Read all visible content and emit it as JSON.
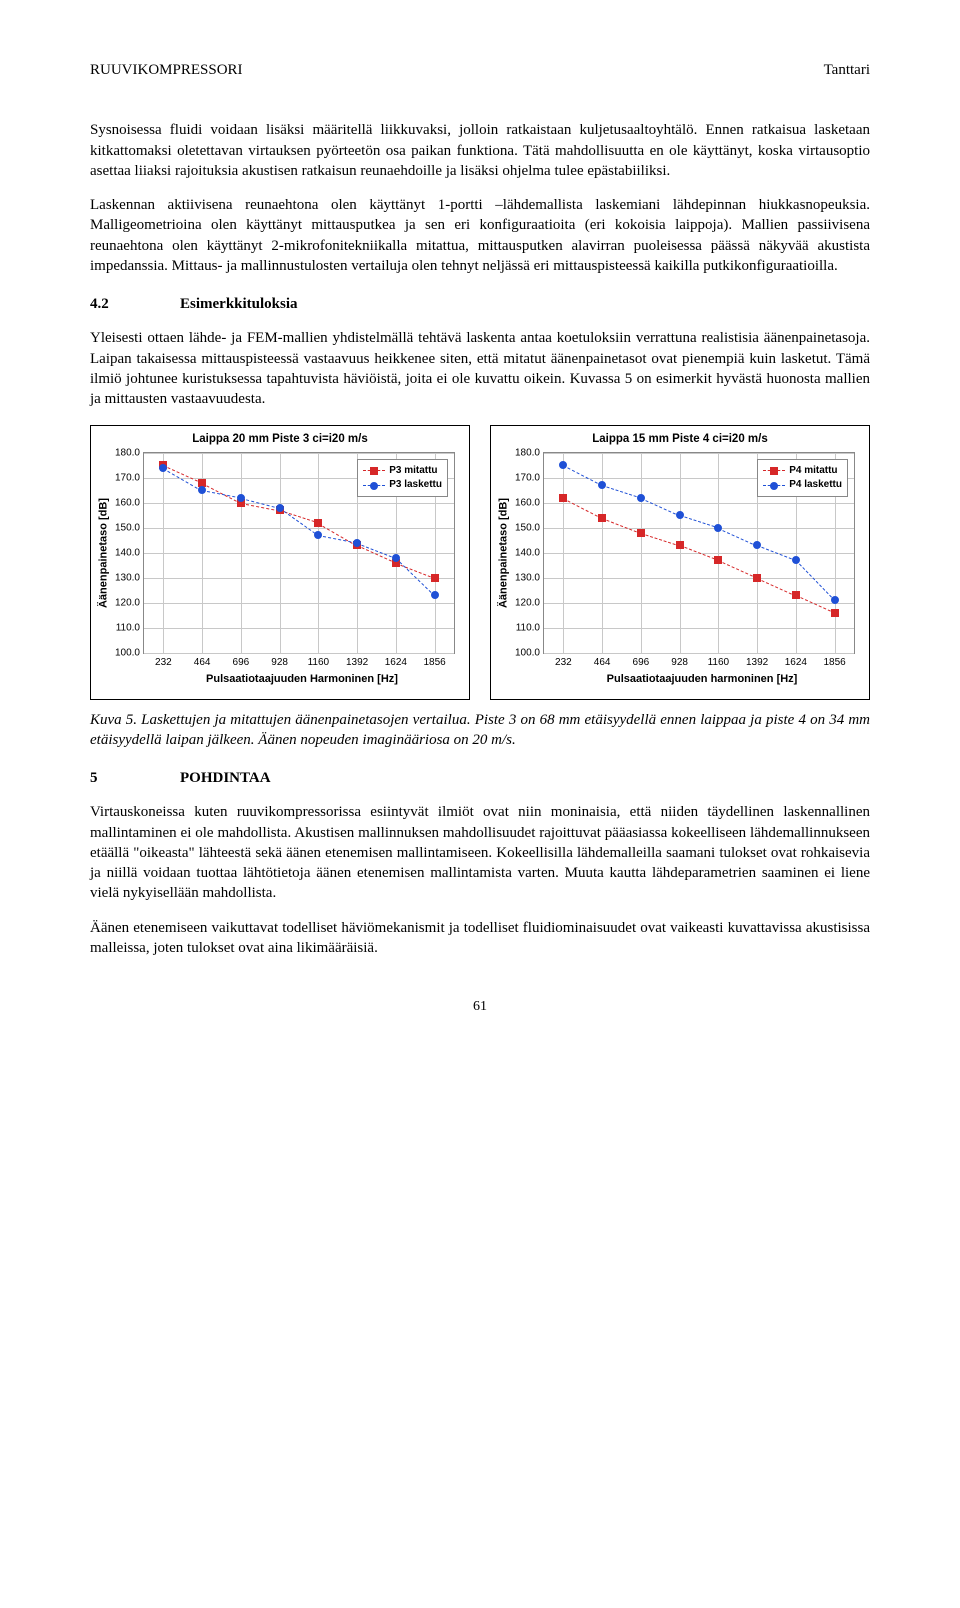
{
  "header": {
    "left": "RUUVIKOMPRESSORI",
    "right": "Tanttari"
  },
  "para1": "Sysnoisessa fluidi voidaan lisäksi määritellä liikkuvaksi, jolloin ratkaistaan kuljetusaaltoyhtälö. Ennen ratkaisua lasketaan kitkattomaksi oletettavan virtauksen pyörteetön osa paikan funktiona. Tätä mahdollisuutta en ole käyttänyt, koska virtausoptio asettaa liiaksi rajoituksia akustisen ratkaisun reunaehdoille ja lisäksi ohjelma tulee epästabiiliksi.",
  "para2": "Laskennan aktiivisena reunaehtona olen käyttänyt 1-portti –lähdemallista laskemiani lähdepinnan hiukkasnopeuksia. Malligeometrioina olen käyttänyt mittausputkea ja sen eri konfiguraatioita (eri kokoisia laippoja). Mallien passiivisena reunaehtona olen käyttänyt 2-mikrofonitekniikalla mitattua, mittausputken alavirran puoleisessa päässä näkyvää akustista impedanssia. Mittaus- ja mallinnustulosten vertailuja olen tehnyt neljässä eri mittauspisteessä kaikilla putkikonfiguraatioilla.",
  "section42": {
    "num": "4.2",
    "title": "Esimerkkituloksia"
  },
  "para3": "Yleisesti ottaen lähde- ja FEM-mallien yhdistelmällä tehtävä laskenta antaa koetuloksiin verrattuna realistisia äänenpainetasoja. Laipan takaisessa mittauspisteessä vastaavuus heikkenee siten, että mitatut äänenpainetasot ovat pienempiä kuin lasketut. Tämä ilmiö johtunee kuristuksessa tapahtuvista häviöistä, joita ei ole kuvattu oikein. Kuvassa 5 on esimerkit hyvästä huonosta mallien ja mittausten vastaavuudesta.",
  "chart_left": {
    "title": "Laippa 20 mm Piste 3 ci=i20 m/s",
    "ylabel": "Äänenpainetaso [dB]",
    "xlabel": "Pulsaatiotaajuuden Harmoninen [Hz]",
    "ylim": [
      100,
      180
    ],
    "ytick_step": 10,
    "xticks": [
      232,
      464,
      696,
      928,
      1160,
      1392,
      1624,
      1856
    ],
    "legend": [
      "P3 mitattu",
      "P3 laskettu"
    ],
    "colors": {
      "mitattu": "#d62728",
      "laskettu": "#1f50d6",
      "grid": "#c8c8c8",
      "bg": "#ffffff"
    },
    "series_mitattu": [
      175,
      168,
      160,
      157,
      152,
      143,
      136,
      130
    ],
    "series_laskettu": [
      174,
      165,
      162,
      158,
      147,
      144,
      138,
      123
    ]
  },
  "chart_right": {
    "title": "Laippa 15 mm Piste 4 ci=i20 m/s",
    "ylabel": "Äänenpainetaso [dB]",
    "xlabel": "Pulsaatiotaajuuden harmoninen [Hz]",
    "ylim": [
      100,
      180
    ],
    "ytick_step": 10,
    "xticks": [
      232,
      464,
      696,
      928,
      1160,
      1392,
      1624,
      1856
    ],
    "legend": [
      "P4 mitattu",
      "P4 laskettu"
    ],
    "colors": {
      "mitattu": "#d62728",
      "laskettu": "#1f50d6",
      "grid": "#c8c8c8",
      "bg": "#ffffff"
    },
    "series_mitattu": [
      162,
      154,
      148,
      143,
      137,
      130,
      123,
      116
    ],
    "series_laskettu": [
      175,
      167,
      162,
      155,
      150,
      143,
      137,
      121
    ]
  },
  "caption": "Kuva 5. Laskettujen ja mitattujen äänenpainetasojen vertailua. Piste 3 on 68 mm etäisyydellä ennen laippaa ja piste 4 on 34 mm etäisyydellä laipan jälkeen. Äänen nopeuden imaginääriosa on 20 m/s.",
  "section5": {
    "num": "5",
    "title": "POHDINTAA"
  },
  "para4": "Virtauskoneissa kuten ruuvikompressorissa esiintyvät ilmiöt ovat niin moninaisia, että niiden täydellinen laskennallinen mallintaminen ei ole mahdollista. Akustisen mallinnuksen mahdollisuudet rajoittuvat pääasiassa kokeelliseen lähdemallinnukseen etäällä \"oikeasta\" lähteestä sekä äänen etenemisen mallintamiseen. Kokeellisilla lähdemalleilla saamani tulokset ovat rohkaisevia ja niillä voidaan tuottaa lähtötietoja äänen etenemisen mallintamista varten. Muuta kautta lähdeparametrien saaminen ei liene vielä nykyisellään mahdollista.",
  "para5": "Äänen etenemiseen vaikuttavat todelliset häviömekanismit ja todelliset fluidiominaisuudet ovat vaikeasti kuvattavissa akustisissa malleissa, joten tulokset ovat aina likimääräisiä.",
  "pagenum": "61"
}
